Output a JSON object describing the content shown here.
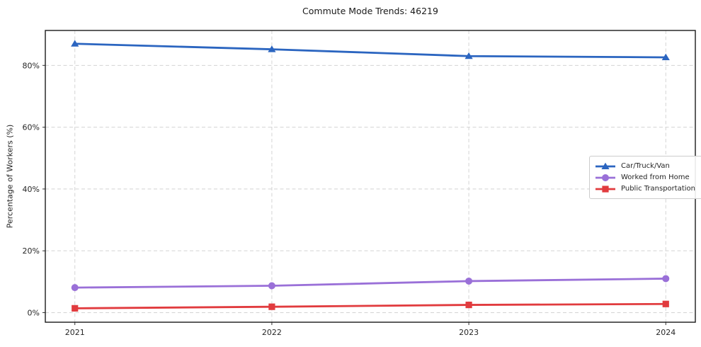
{
  "chart_data": {
    "type": "line",
    "title": "Commute Mode Trends: 46219",
    "xlabel": "",
    "ylabel": "Percentage of Workers (%)",
    "categories": [
      2021,
      2022,
      2023,
      2024
    ],
    "x_tick_labels": [
      "2021",
      "2022",
      "2023",
      "2024"
    ],
    "series": [
      {
        "name": "Car/Truck/Van",
        "marker": "triangle",
        "color": "#2b65c0",
        "values": [
          87.0,
          85.2,
          83.0,
          82.6
        ]
      },
      {
        "name": "Worked from Home",
        "marker": "circle",
        "color": "#9a70d8",
        "values": [
          8.1,
          8.7,
          10.2,
          11.0
        ]
      },
      {
        "name": "Public Transportation",
        "marker": "square",
        "color": "#e13b3e",
        "values": [
          1.4,
          1.9,
          2.5,
          2.8
        ]
      }
    ],
    "yticks": [
      "0%",
      "20%",
      "40%",
      "60%",
      "80%"
    ],
    "ytick_values": [
      0,
      20,
      40,
      60,
      80
    ],
    "ylim": [
      -3.1,
      91.3
    ],
    "xlim": [
      2020.85,
      2024.15
    ],
    "grid": true,
    "grid_style": "dashed",
    "legend_position": "center-right",
    "colors": {
      "grid": "#d4d4d4",
      "spine": "#1a1a1a",
      "tick_label": "#262626",
      "background": "#ffffff"
    }
  }
}
